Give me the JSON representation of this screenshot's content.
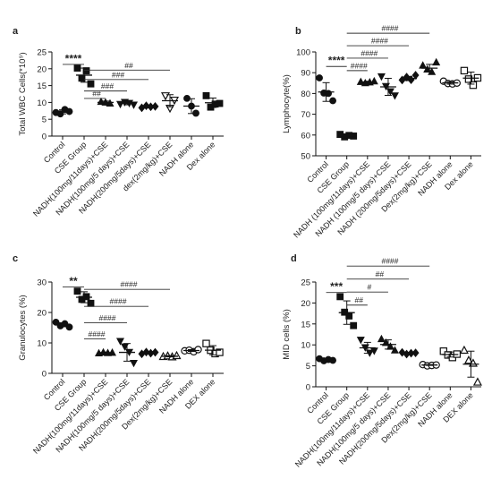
{
  "chart_data": [
    {
      "panel": "a",
      "type": "scatter",
      "ylabel": "Total WBC Cells(*10⁹)",
      "ylim": [
        0,
        25
      ],
      "yticks": [
        0,
        5,
        10,
        15,
        20,
        25
      ],
      "categories": [
        "Control",
        "CSE Group",
        "NADH(100mg/11days)+CSE",
        "NADH(100mg/5 days)+CSE",
        "NADH(200mg/5days)+CSE",
        "dex(2mg/kg)+CSE",
        "NADH alone",
        "Dex alone"
      ],
      "series": [
        {
          "marker": "circle",
          "values": [
            7.0,
            6.6,
            7.9,
            7.3
          ]
        },
        {
          "marker": "square",
          "values": [
            20.2,
            17.2,
            19.4,
            15.5
          ]
        },
        {
          "marker": "triangle-up",
          "values": [
            10.2,
            10.0,
            9.7
          ]
        },
        {
          "marker": "triangle-down",
          "values": [
            9.5,
            10.1,
            9.8,
            9.3
          ]
        },
        {
          "marker": "diamond",
          "values": [
            8.4,
            9.0,
            8.7,
            8.8
          ]
        },
        {
          "marker": "triangle-down-open",
          "values": [
            12.0,
            8.3,
            10.7
          ]
        },
        {
          "marker": "circle",
          "values": [
            11.2,
            8.9,
            6.8
          ]
        },
        {
          "marker": "square",
          "values": [
            12.0,
            8.6,
            9.5,
            9.7
          ]
        }
      ],
      "means": [
        7.2,
        18.1,
        10.0,
        9.7,
        8.8,
        10.5,
        8.9,
        9.9
      ],
      "sd": [
        0.6,
        2.1,
        0.4,
        0.4,
        0.4,
        1.8,
        2.2,
        1.4
      ],
      "annotations": [
        {
          "from": 0,
          "to": 1,
          "text": "****",
          "y": 21.3
        },
        {
          "from": 1,
          "to": 2,
          "text": "##",
          "y": 11.2
        },
        {
          "from": 1,
          "to": 3,
          "text": "###",
          "y": 13.4
        },
        {
          "from": 1,
          "to": 4,
          "text": "###",
          "y": 16.8
        },
        {
          "from": 1,
          "to": 5,
          "text": "##",
          "y": 19.6
        }
      ]
    },
    {
      "panel": "b",
      "type": "scatter",
      "ylabel": "Lymphocyte(%)",
      "ylim": [
        50,
        100
      ],
      "yticks": [
        50,
        60,
        70,
        80,
        90,
        100
      ],
      "categories": [
        "Control",
        "CSE Group",
        "NADH (100mg/11days)+CSE",
        "NADH (100mg/5 days)+CSE",
        "NADH (200mg/5days)+CSE",
        "Dex(2mg/kg)+CSE",
        "NADH alone",
        "Dex alone"
      ],
      "series": [
        {
          "marker": "circle",
          "values": [
            87.5,
            80.2,
            80.0,
            76.5
          ]
        },
        {
          "marker": "square",
          "values": [
            60.3,
            59.1,
            59.8,
            59.5
          ]
        },
        {
          "marker": "triangle-up",
          "values": [
            85.6,
            85.0,
            85.4,
            85.9
          ]
        },
        {
          "marker": "triangle-down",
          "values": [
            88.2,
            83.5,
            81.0,
            79.0
          ]
        },
        {
          "marker": "diamond",
          "values": [
            86.5,
            87.9,
            86.6,
            88.8
          ]
        },
        {
          "marker": "triangle-up",
          "values": [
            93.5,
            91.6,
            90.4,
            95.0
          ]
        },
        {
          "marker": "circle-open",
          "values": [
            85.9,
            84.8,
            84.6,
            85.0
          ]
        },
        {
          "marker": "square-open",
          "values": [
            91.0,
            86.9,
            84.0,
            87.5
          ]
        }
      ],
      "means": [
        80.7,
        59.7,
        85.5,
        83.2,
        87.2,
        92.2,
        85.1,
        87.4
      ],
      "sd": [
        4.5,
        0.5,
        0.4,
        4.1,
        1.0,
        1.8,
        0.6,
        2.9
      ],
      "annotations": [
        {
          "from": 0,
          "to": 1,
          "text": "****",
          "y": 93.0
        },
        {
          "from": 1,
          "to": 2,
          "text": "####",
          "y": 91.0
        },
        {
          "from": 1,
          "to": 3,
          "text": "####",
          "y": 97.0
        },
        {
          "from": 1,
          "to": 4,
          "text": "####",
          "y": 103.0
        },
        {
          "from": 1,
          "to": 5,
          "text": "####",
          "y": 109.0
        }
      ]
    },
    {
      "panel": "c",
      "type": "scatter",
      "ylabel": "Granulocytes (%)",
      "ylim": [
        0,
        30
      ],
      "yticks": [
        0,
        10,
        20,
        30
      ],
      "categories": [
        "Control",
        "CSE Group",
        "NADH(100mg/11days)+CSE",
        "NADH(100mg/5 days)+CSE",
        "NADH(200mg/5days)+CSE",
        "Dex(2mg/kg)+CSE",
        "NADH alone",
        "DEX alone"
      ],
      "series": [
        {
          "marker": "circle",
          "values": [
            16.8,
            15.6,
            16.3,
            15.2
          ]
        },
        {
          "marker": "square",
          "values": [
            27.0,
            24.3,
            25.2,
            23.0
          ]
        },
        {
          "marker": "triangle-up",
          "values": [
            6.6,
            6.9,
            6.7,
            6.8
          ]
        },
        {
          "marker": "triangle-down",
          "values": [
            10.6,
            8.8,
            7.0,
            3.4
          ]
        },
        {
          "marker": "diamond",
          "values": [
            6.4,
            7.0,
            6.6,
            6.9
          ]
        },
        {
          "marker": "triangle-up-open",
          "values": [
            5.5,
            5.7,
            5.4,
            5.8
          ]
        },
        {
          "marker": "circle-open",
          "values": [
            7.4,
            7.6,
            7.1,
            7.8
          ]
        },
        {
          "marker": "square-open",
          "values": [
            9.8,
            7.6,
            6.5,
            6.9
          ]
        }
      ],
      "means": [
        16.0,
        25.0,
        6.8,
        6.9,
        6.7,
        5.6,
        7.5,
        7.6
      ],
      "sd": [
        0.6,
        1.8,
        0.2,
        2.9,
        0.3,
        0.2,
        0.3,
        1.5
      ],
      "annotations": [
        {
          "from": 0,
          "to": 1,
          "text": "**",
          "y": 28.4
        },
        {
          "from": 1,
          "to": 2,
          "text": "####",
          "y": 11.3
        },
        {
          "from": 1,
          "to": 3,
          "text": "####",
          "y": 16.6
        },
        {
          "from": 1,
          "to": 4,
          "text": "####",
          "y": 22.0
        },
        {
          "from": 1,
          "to": 5,
          "text": "####",
          "y": 27.6
        }
      ]
    },
    {
      "panel": "d",
      "type": "scatter",
      "ylabel": "MID cells (%)",
      "ylim": [
        0,
        25
      ],
      "yticks": [
        0,
        5,
        10,
        15,
        20,
        25
      ],
      "categories": [
        "Control",
        "CSE Group",
        "NADH(100mg/11days)+CSE",
        "NADH(100mg/5 days)+CSE",
        "NADH(200mg/5days)+CSE",
        "Dex(2mg/kg)+CSE",
        "NADH alone",
        "DEX alone"
      ],
      "series": [
        {
          "marker": "circle",
          "values": [
            6.7,
            6.2,
            6.5,
            6.3
          ]
        },
        {
          "marker": "square",
          "values": [
            21.5,
            17.8,
            16.9,
            14.6
          ]
        },
        {
          "marker": "triangle-down",
          "values": [
            11.2,
            9.4,
            8.1,
            8.6
          ]
        },
        {
          "marker": "triangle-up",
          "values": [
            11.4,
            10.5,
            9.6,
            8.7
          ]
        },
        {
          "marker": "diamond",
          "values": [
            8.2,
            7.8,
            8.0,
            8.1
          ]
        },
        {
          "marker": "circle-open",
          "values": [
            5.3,
            5.0,
            5.1,
            5.2
          ]
        },
        {
          "marker": "square-open",
          "values": [
            8.5,
            7.6,
            7.0,
            7.8
          ]
        },
        {
          "marker": "triangle-up-open",
          "values": [
            8.7,
            6.3,
            5.6,
            1.1
          ]
        }
      ],
      "means": [
        6.4,
        17.7,
        9.3,
        10.1,
        8.0,
        5.2,
        7.7,
        5.4
      ],
      "sd": [
        0.2,
        2.8,
        1.3,
        1.1,
        0.2,
        0.1,
        0.6,
        3.1
      ],
      "annotations": [
        {
          "from": 0,
          "to": 1,
          "text": "***",
          "y": 22.5
        },
        {
          "from": 1,
          "to": 2,
          "text": "##",
          "y": 19.5
        },
        {
          "from": 1,
          "to": 3,
          "text": "#",
          "y": 22.6
        },
        {
          "from": 1,
          "to": 4,
          "text": "##",
          "y": 25.7
        },
        {
          "from": 1,
          "to": 5,
          "text": "####",
          "y": 28.8
        }
      ]
    }
  ]
}
